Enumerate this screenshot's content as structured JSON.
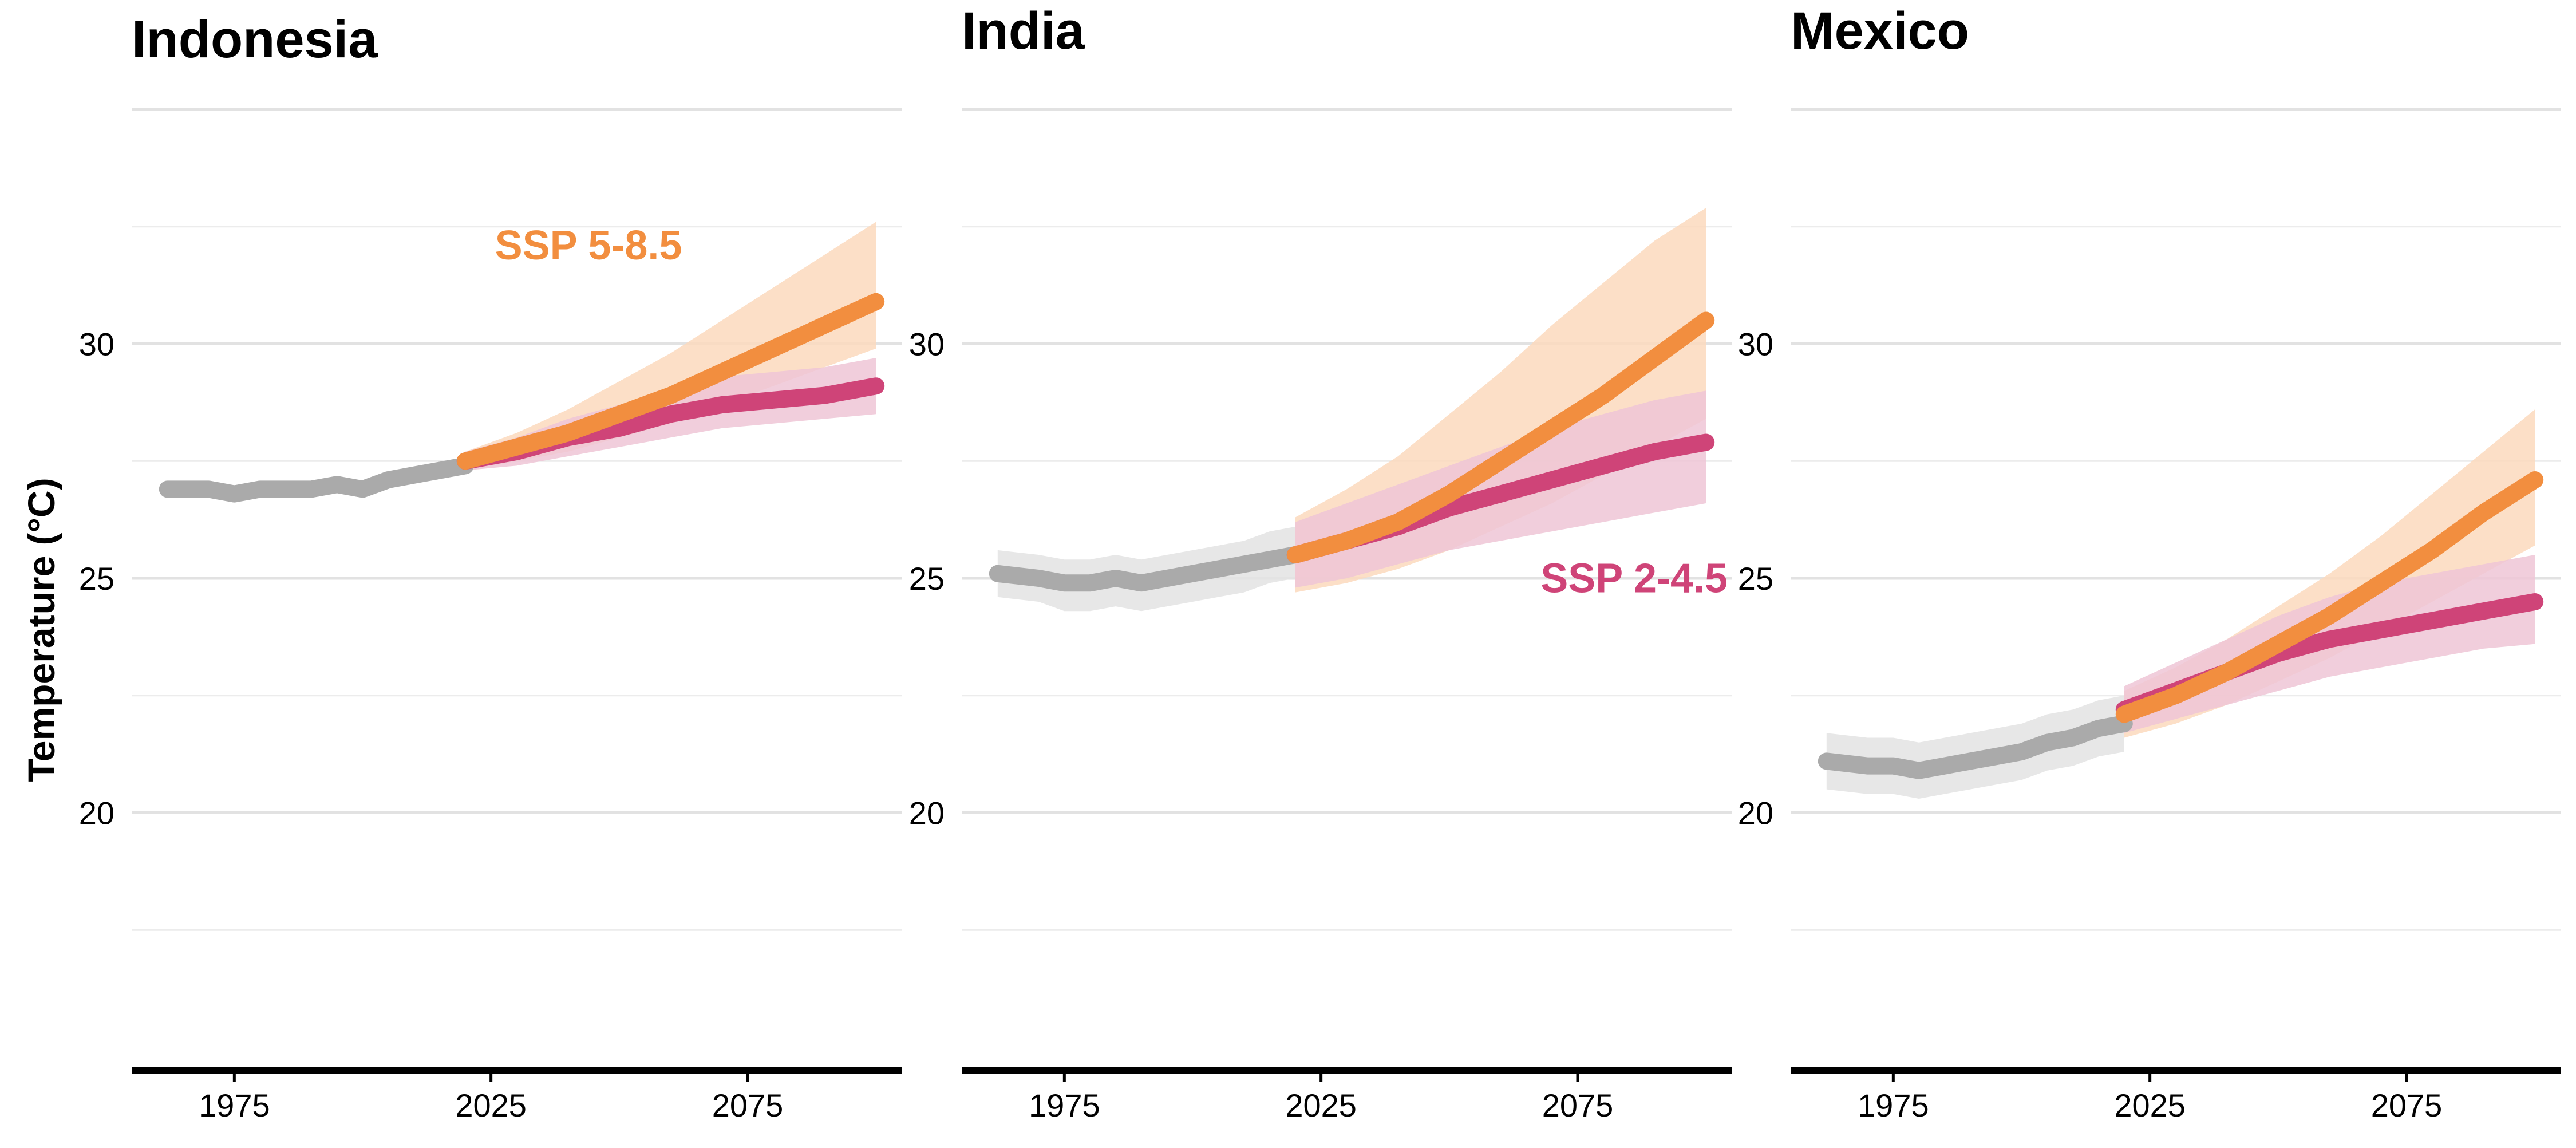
{
  "chart_data": {
    "type": "line",
    "ylabel": "Temperature (°C)",
    "ylim": [
      14.5,
      35.5
    ],
    "y_ticks": [
      20,
      25,
      30
    ],
    "xlim": [
      1955,
      2105
    ],
    "x_ticks": [
      1975,
      2025,
      2075
    ],
    "grid": true,
    "colors": {
      "historical": "#aaaaaa",
      "historical_band": "#e3e3e3",
      "ssp585": "#f28e3f",
      "ssp585_band": "#fbd9bd",
      "ssp245": "#cf4478",
      "ssp245_band": "#efc5d6"
    },
    "scenario_labels": {
      "ssp585": "SSP 5-8.5",
      "ssp245": "SSP 2-4.5"
    },
    "panels": [
      {
        "title": "Indonesia",
        "label_panel_for": "ssp585",
        "historical": {
          "x": [
            1962,
            1970,
            1975,
            1980,
            1985,
            1990,
            1995,
            2000,
            2005,
            2010,
            2015,
            2020
          ],
          "y": [
            26.9,
            26.9,
            26.8,
            26.9,
            26.9,
            26.9,
            27.0,
            26.9,
            27.1,
            27.2,
            27.3,
            27.4
          ],
          "lower": [
            26.8,
            26.8,
            26.7,
            26.8,
            26.8,
            26.8,
            26.9,
            26.8,
            27.0,
            27.1,
            27.2,
            27.3
          ],
          "upper": [
            27.0,
            27.0,
            26.9,
            27.0,
            27.0,
            27.0,
            27.1,
            27.0,
            27.2,
            27.3,
            27.4,
            27.5
          ]
        },
        "ssp585": {
          "x": [
            2020,
            2030,
            2040,
            2050,
            2060,
            2070,
            2080,
            2090,
            2100
          ],
          "y": [
            27.5,
            27.8,
            28.1,
            28.5,
            28.9,
            29.4,
            29.9,
            30.4,
            30.9
          ],
          "lower": [
            27.3,
            27.5,
            27.7,
            28.0,
            28.3,
            28.7,
            29.1,
            29.5,
            29.9
          ],
          "upper": [
            27.7,
            28.1,
            28.6,
            29.2,
            29.8,
            30.5,
            31.2,
            31.9,
            32.6
          ]
        },
        "ssp245": {
          "x": [
            2020,
            2030,
            2040,
            2050,
            2060,
            2070,
            2080,
            2090,
            2100
          ],
          "y": [
            27.5,
            27.7,
            28.0,
            28.2,
            28.5,
            28.7,
            28.8,
            28.9,
            29.1
          ],
          "lower": [
            27.3,
            27.4,
            27.6,
            27.8,
            28.0,
            28.2,
            28.3,
            28.4,
            28.5
          ],
          "upper": [
            27.7,
            28.0,
            28.4,
            28.7,
            29.0,
            29.3,
            29.4,
            29.5,
            29.7
          ]
        }
      },
      {
        "title": "India",
        "label_panel_for": "ssp245",
        "historical": {
          "x": [
            1962,
            1970,
            1975,
            1980,
            1985,
            1990,
            1995,
            2000,
            2005,
            2010,
            2015,
            2020
          ],
          "y": [
            25.1,
            25.0,
            24.9,
            24.9,
            25.0,
            24.9,
            25.0,
            25.1,
            25.2,
            25.3,
            25.4,
            25.5
          ],
          "lower": [
            24.6,
            24.5,
            24.3,
            24.3,
            24.4,
            24.3,
            24.4,
            24.5,
            24.6,
            24.7,
            24.9,
            25.0
          ],
          "upper": [
            25.6,
            25.5,
            25.4,
            25.4,
            25.5,
            25.4,
            25.5,
            25.6,
            25.7,
            25.8,
            26.0,
            26.1
          ]
        },
        "ssp585": {
          "x": [
            2020,
            2030,
            2040,
            2050,
            2060,
            2070,
            2080,
            2090,
            2100
          ],
          "y": [
            25.5,
            25.8,
            26.2,
            26.8,
            27.5,
            28.2,
            28.9,
            29.7,
            30.5
          ],
          "lower": [
            24.7,
            24.9,
            25.2,
            25.6,
            26.1,
            26.6,
            27.2,
            27.8,
            28.4
          ],
          "upper": [
            26.3,
            26.9,
            27.6,
            28.5,
            29.4,
            30.4,
            31.3,
            32.2,
            32.9
          ]
        },
        "ssp245": {
          "x": [
            2020,
            2030,
            2040,
            2050,
            2060,
            2070,
            2080,
            2090,
            2100
          ],
          "y": [
            25.5,
            25.8,
            26.1,
            26.5,
            26.8,
            27.1,
            27.4,
            27.7,
            27.9
          ],
          "lower": [
            24.8,
            25.0,
            25.3,
            25.6,
            25.8,
            26.0,
            26.2,
            26.4,
            26.6
          ],
          "upper": [
            26.2,
            26.6,
            27.0,
            27.4,
            27.8,
            28.2,
            28.5,
            28.8,
            29.0
          ]
        }
      },
      {
        "title": "Mexico",
        "label_panel_for": "",
        "historical": {
          "x": [
            1962,
            1970,
            1975,
            1980,
            1985,
            1990,
            1995,
            2000,
            2005,
            2010,
            2015,
            2020
          ],
          "y": [
            21.1,
            21.0,
            21.0,
            20.9,
            21.0,
            21.1,
            21.2,
            21.3,
            21.5,
            21.6,
            21.8,
            21.9
          ],
          "lower": [
            20.5,
            20.4,
            20.4,
            20.3,
            20.4,
            20.5,
            20.6,
            20.7,
            20.9,
            21.0,
            21.2,
            21.3
          ],
          "upper": [
            21.7,
            21.6,
            21.6,
            21.5,
            21.6,
            21.7,
            21.8,
            21.9,
            22.1,
            22.2,
            22.4,
            22.5
          ]
        },
        "ssp585": {
          "x": [
            2020,
            2030,
            2040,
            2050,
            2060,
            2070,
            2080,
            2090,
            2100
          ],
          "y": [
            22.1,
            22.5,
            23.0,
            23.6,
            24.2,
            24.9,
            25.6,
            26.4,
            27.1
          ],
          "lower": [
            21.6,
            21.9,
            22.3,
            22.8,
            23.3,
            23.9,
            24.5,
            25.1,
            25.7
          ],
          "upper": [
            22.6,
            23.1,
            23.7,
            24.4,
            25.1,
            25.9,
            26.8,
            27.7,
            28.6
          ]
        },
        "ssp245": {
          "x": [
            2020,
            2030,
            2040,
            2050,
            2060,
            2070,
            2080,
            2090,
            2100
          ],
          "y": [
            22.2,
            22.6,
            23.0,
            23.4,
            23.7,
            23.9,
            24.1,
            24.3,
            24.5
          ],
          "lower": [
            21.7,
            22.0,
            22.3,
            22.6,
            22.9,
            23.1,
            23.3,
            23.5,
            23.6
          ],
          "upper": [
            22.7,
            23.2,
            23.7,
            24.2,
            24.6,
            24.9,
            25.1,
            25.3,
            25.5
          ]
        }
      }
    ]
  }
}
